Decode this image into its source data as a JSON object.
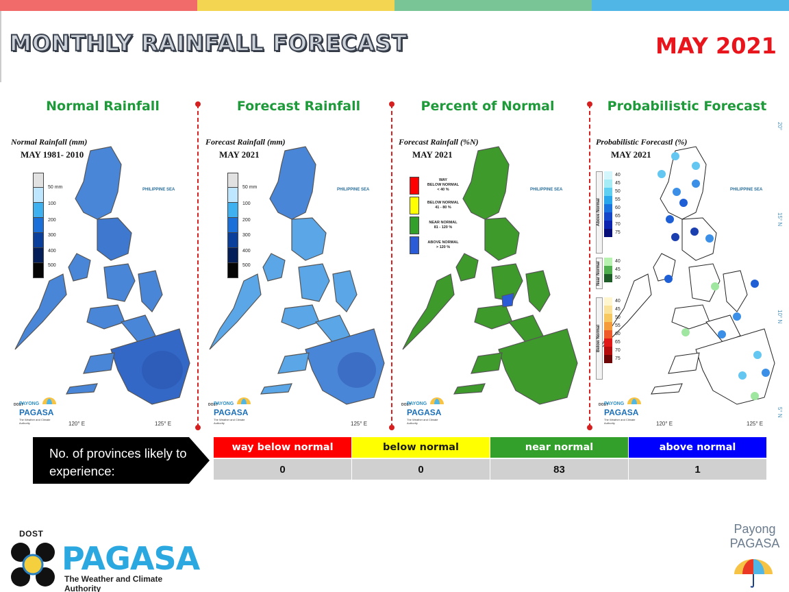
{
  "colors": {
    "topbar": [
      "#f26b6b",
      "#f3d551",
      "#79c596",
      "#4fb6e6"
    ],
    "panel_title": "#1f9a3a",
    "month": "#e8151d",
    "way_below": "#ff0000",
    "below": "#ffff00",
    "near": "#33a02c",
    "above": "#0000ff"
  },
  "header": {
    "title": "MONTHLY RAINFALL FORECAST",
    "month": "MAY 2021"
  },
  "panels": [
    {
      "title": "Normal Rainfall",
      "map_heading": "Normal Rainfall (mm)",
      "map_sub": "MAY 1981- 2010",
      "legend": [
        "50 mm",
        "100",
        "200",
        "300",
        "400",
        "500"
      ]
    },
    {
      "title": "Forecast Rainfall",
      "map_heading": "Forecast Rainfall (mm)",
      "map_sub": "MAY 2021",
      "legend": [
        "50 mm",
        "100",
        "200",
        "300",
        "400",
        "500"
      ]
    },
    {
      "title": "Percent of Normal",
      "map_heading": "Forecast Rainfall (%N)",
      "map_sub": "MAY 2021",
      "legend": [
        {
          "line1": "WAY",
          "line2": "BELOW NORMAL",
          "line3": "< 40 %"
        },
        {
          "line1": "BELOW NORMAL",
          "line2": "41 - 80 %",
          "line3": ""
        },
        {
          "line1": "NEAR NORMAL",
          "line2": "81 - 120 %",
          "line3": ""
        },
        {
          "line1": "ABOVE NORMAL",
          "line2": "> 120 %",
          "line3": ""
        }
      ]
    },
    {
      "title": "Probabilistic Forecast",
      "map_heading": "Probabilistic Forecastl (%)",
      "map_sub": "MAY 2021",
      "legend": {
        "above": {
          "tag": "Above Normal",
          "values": [
            "40",
            "45",
            "50",
            "55",
            "60",
            "65",
            "70",
            "75"
          ]
        },
        "near": {
          "tag": "Near Normal",
          "values": [
            "40",
            "45",
            "50"
          ]
        },
        "below": {
          "tag": "Below Normal",
          "values": [
            "40",
            "45",
            "50",
            "55",
            "60",
            "65",
            "70",
            "75"
          ]
        }
      }
    }
  ],
  "map_labels": {
    "sea": "PHILIPPINE SEA",
    "lon_120": "120° E",
    "lon_125": "125° E",
    "lat_15": "15° N",
    "lat_10": "10° N",
    "lat_20": "20°",
    "lat_5": "5° N"
  },
  "mini_logo": {
    "dost": "DOST",
    "payong": "PAYONG",
    "pagasa": "PAGASA",
    "tagline": "The Weather and Climate Authority"
  },
  "summary": {
    "label": "No. of provinces likely to experience:",
    "categories": [
      {
        "name": "way below normal",
        "count": "0"
      },
      {
        "name": "below normal",
        "count": "0"
      },
      {
        "name": "near normal",
        "count": "83"
      },
      {
        "name": "above normal",
        "count": "1"
      }
    ]
  },
  "footer": {
    "dost": "DOST",
    "pagasa": "PAGASA",
    "tagline": "The Weather and Climate Authority",
    "payong_line1": "Payong",
    "payong_line2": "PAGASA"
  }
}
